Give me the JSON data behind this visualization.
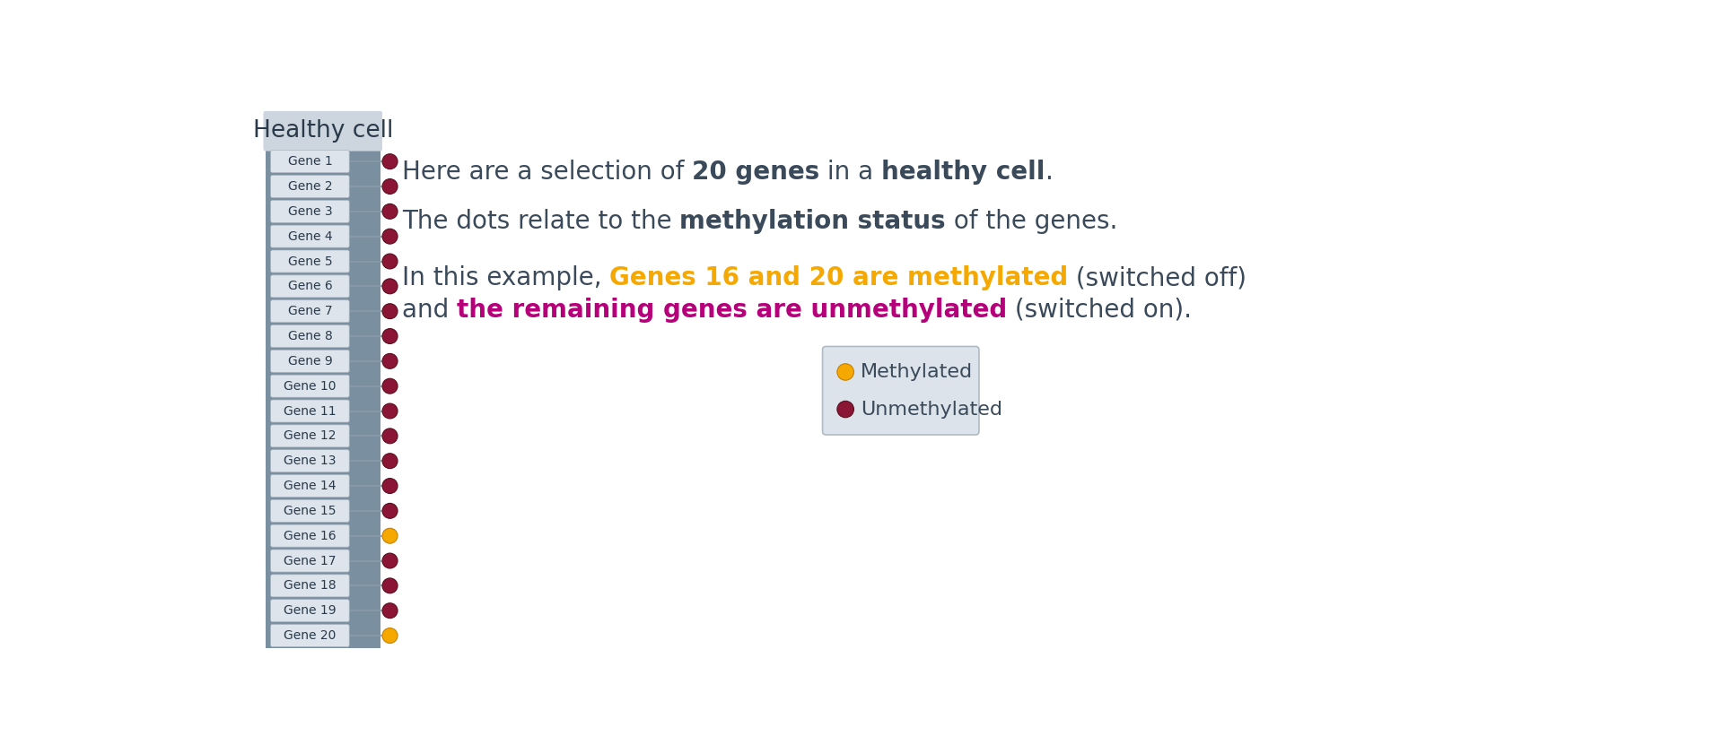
{
  "title": "Healthy cell",
  "genes": [
    "Gene 1",
    "Gene 2",
    "Gene 3",
    "Gene 4",
    "Gene 5",
    "Gene 6",
    "Gene 7",
    "Gene 8",
    "Gene 9",
    "Gene 10",
    "Gene 11",
    "Gene 12",
    "Gene 13",
    "Gene 14",
    "Gene 15",
    "Gene 16",
    "Gene 17",
    "Gene 18",
    "Gene 19",
    "Gene 20"
  ],
  "methylated_genes": [
    16,
    20
  ],
  "n_genes": 20,
  "panel_bg": "#7a8fa0",
  "header_bg": "#cdd5de",
  "gene_box_fill": "#dde4ec",
  "gene_box_stroke": "#aab4c0",
  "gene_text_color": "#2a3a4a",
  "unmethylated_color": "#8b1535",
  "methylated_color": "#f5a800",
  "text_color": "#3a4a5a",
  "highlight_orange": "#f5a800",
  "highlight_purple": "#b5007a",
  "bg_color": "#ffffff",
  "legend_bg": "#dde3ea",
  "legend_border": "#b0bac5",
  "legend_methylated": "Methylated",
  "legend_unmethylated": "Unmethylated",
  "font_size_text": 20,
  "font_size_gene": 10,
  "font_size_title": 19,
  "font_size_legend": 16
}
